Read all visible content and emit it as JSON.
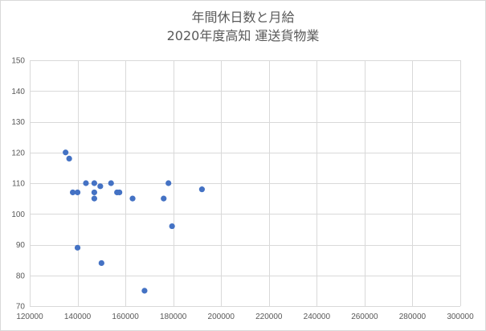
{
  "chart_data": {
    "type": "scatter",
    "title": "年間休日数と月給",
    "subtitle": "2020年度高知  運送貨物業",
    "xlabel": "",
    "ylabel": "",
    "xlim": [
      120000,
      300000
    ],
    "ylim": [
      70,
      150
    ],
    "x_ticks": [
      120000,
      140000,
      160000,
      180000,
      200000,
      220000,
      240000,
      260000,
      280000,
      300000
    ],
    "y_ticks": [
      70,
      80,
      90,
      100,
      110,
      120,
      130,
      140,
      150
    ],
    "grid": true,
    "legend": "none",
    "point_color": "#4472c4",
    "points": [
      {
        "x": 135000,
        "y": 120
      },
      {
        "x": 136500,
        "y": 118
      },
      {
        "x": 138000,
        "y": 107
      },
      {
        "x": 140000,
        "y": 107
      },
      {
        "x": 140000,
        "y": 89
      },
      {
        "x": 143500,
        "y": 110
      },
      {
        "x": 147000,
        "y": 110
      },
      {
        "x": 147000,
        "y": 107
      },
      {
        "x": 147000,
        "y": 105
      },
      {
        "x": 149500,
        "y": 109
      },
      {
        "x": 150000,
        "y": 84
      },
      {
        "x": 154000,
        "y": 110
      },
      {
        "x": 156500,
        "y": 107
      },
      {
        "x": 157500,
        "y": 107
      },
      {
        "x": 163000,
        "y": 105
      },
      {
        "x": 168000,
        "y": 75
      },
      {
        "x": 176000,
        "y": 105
      },
      {
        "x": 178000,
        "y": 110
      },
      {
        "x": 179500,
        "y": 96
      },
      {
        "x": 192000,
        "y": 108
      }
    ]
  }
}
